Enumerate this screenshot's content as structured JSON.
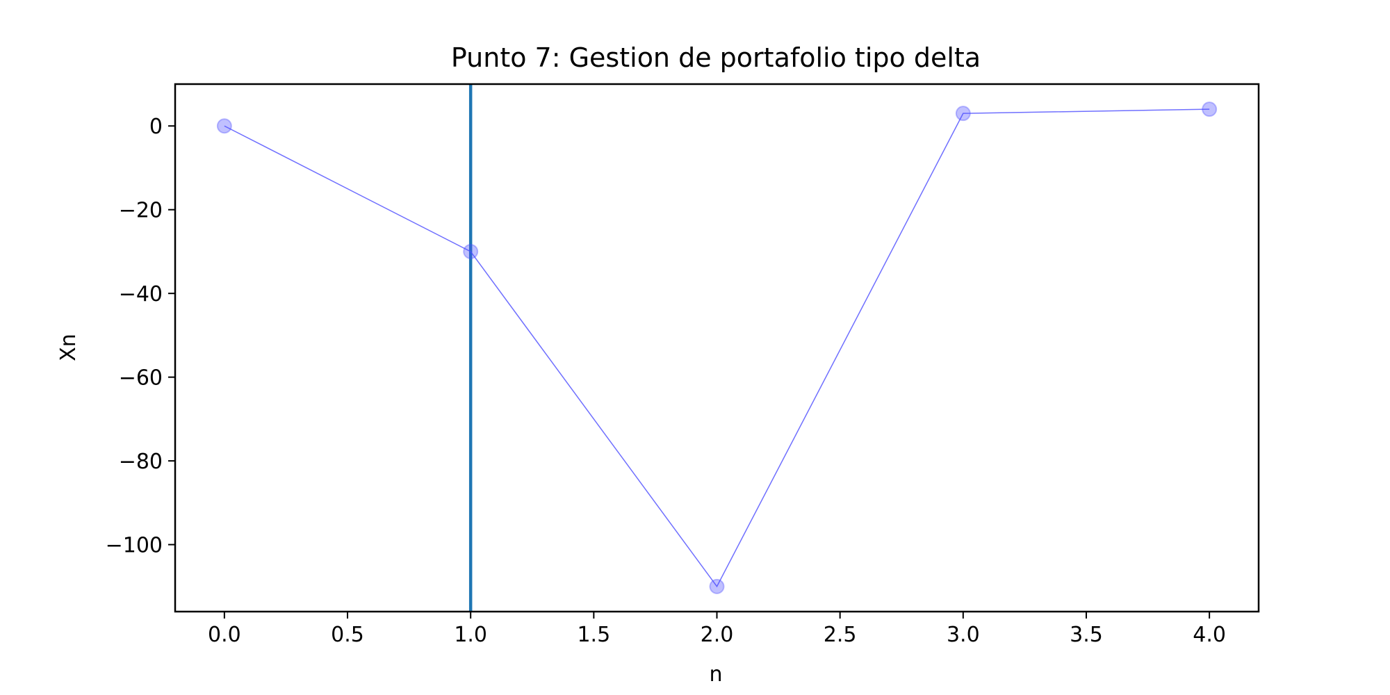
{
  "chart_data": {
    "type": "line",
    "title": "Punto 7: Gestion de portafolio tipo delta",
    "xlabel": "n",
    "ylabel": "Xn",
    "xlim": [
      -0.2,
      4.2
    ],
    "ylim": [
      -116,
      10
    ],
    "x_ticks": [
      0.0,
      0.5,
      1.0,
      1.5,
      2.0,
      2.5,
      3.0,
      3.5,
      4.0
    ],
    "x_tick_labels": [
      "0.0",
      "0.5",
      "1.0",
      "1.5",
      "2.0",
      "2.5",
      "3.0",
      "3.5",
      "4.0"
    ],
    "y_ticks": [
      0,
      -20,
      -40,
      -60,
      -80,
      -100
    ],
    "y_tick_labels": [
      "0",
      "−20",
      "−40",
      "−60",
      "−80",
      "−100"
    ],
    "grid": false,
    "series": [
      {
        "x": [
          0,
          1,
          2,
          3,
          4
        ],
        "values": [
          0,
          -30,
          -110,
          3,
          4
        ],
        "color": "#4b4bff"
      }
    ],
    "vline": {
      "x": 1.0,
      "color": "#1f77b4"
    }
  }
}
